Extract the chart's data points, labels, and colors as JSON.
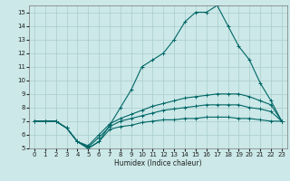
{
  "title": "",
  "xlabel": "Humidex (Indice chaleur)",
  "bg_color": "#cce8e8",
  "line_color": "#006666",
  "grid_color": "#aacccc",
  "xlim": [
    -0.5,
    23.5
  ],
  "ylim": [
    5,
    15.5
  ],
  "xticks": [
    0,
    1,
    2,
    3,
    4,
    5,
    6,
    7,
    8,
    9,
    10,
    11,
    12,
    13,
    14,
    15,
    16,
    17,
    18,
    19,
    20,
    21,
    22,
    23
  ],
  "yticks": [
    5,
    6,
    7,
    8,
    9,
    10,
    11,
    12,
    13,
    14,
    15
  ],
  "lines": [
    {
      "x": [
        0,
        1,
        2,
        3,
        4,
        5,
        6,
        7,
        8,
        9,
        10,
        11,
        12,
        13,
        14,
        15,
        16,
        17,
        18,
        19,
        20,
        21,
        22,
        23
      ],
      "y": [
        7,
        7,
        7,
        6.5,
        5.5,
        5.0,
        5.5,
        6.7,
        8.0,
        9.3,
        11.0,
        11.5,
        12.0,
        13.0,
        14.3,
        15.0,
        15.0,
        15.5,
        14.0,
        12.5,
        11.5,
        9.8,
        8.5,
        7.0
      ]
    },
    {
      "x": [
        0,
        1,
        2,
        3,
        4,
        5,
        6,
        7,
        8,
        9,
        10,
        11,
        12,
        13,
        14,
        15,
        16,
        17,
        18,
        19,
        20,
        21,
        22,
        23
      ],
      "y": [
        7,
        7,
        7,
        6.5,
        5.5,
        5.2,
        6.0,
        6.8,
        7.2,
        7.5,
        7.8,
        8.1,
        8.3,
        8.5,
        8.7,
        8.8,
        8.9,
        9.0,
        9.0,
        9.0,
        8.8,
        8.5,
        8.2,
        7.0
      ]
    },
    {
      "x": [
        0,
        1,
        2,
        3,
        4,
        5,
        6,
        7,
        8,
        9,
        10,
        11,
        12,
        13,
        14,
        15,
        16,
        17,
        18,
        19,
        20,
        21,
        22,
        23
      ],
      "y": [
        7,
        7,
        7,
        6.5,
        5.5,
        5.1,
        5.8,
        6.6,
        7.0,
        7.2,
        7.4,
        7.6,
        7.8,
        7.9,
        8.0,
        8.1,
        8.2,
        8.2,
        8.2,
        8.2,
        8.0,
        7.9,
        7.7,
        7.0
      ]
    },
    {
      "x": [
        0,
        1,
        2,
        3,
        4,
        5,
        6,
        7,
        8,
        9,
        10,
        11,
        12,
        13,
        14,
        15,
        16,
        17,
        18,
        19,
        20,
        21,
        22,
        23
      ],
      "y": [
        7,
        7,
        7,
        6.5,
        5.5,
        5.0,
        5.5,
        6.4,
        6.6,
        6.7,
        6.9,
        7.0,
        7.1,
        7.1,
        7.2,
        7.2,
        7.3,
        7.3,
        7.3,
        7.2,
        7.2,
        7.1,
        7.0,
        7.0
      ]
    }
  ]
}
